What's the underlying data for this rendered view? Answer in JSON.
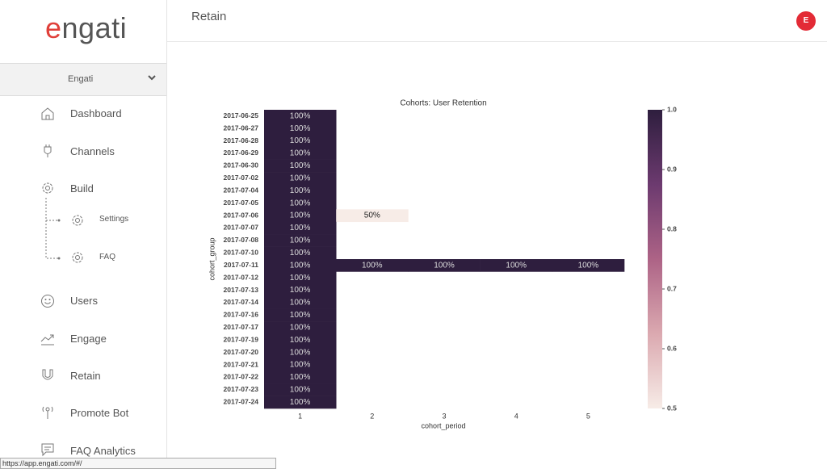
{
  "sidebar": {
    "logo": "engati",
    "workspace": "Engati",
    "nav": [
      "Dashboard",
      "Channels",
      "Build",
      "Settings",
      "FAQ",
      "Users",
      "Engage",
      "Retain",
      "Promote Bot",
      "FAQ Analytics"
    ]
  },
  "header": {
    "title": "Retain",
    "avatar": "E"
  },
  "status_bar": "https://app.engati.com/#/",
  "chart_data": {
    "type": "heatmap",
    "title": "Cohorts: User Retention",
    "x_label": "cohort_period",
    "y_label": "cohort_group",
    "categories": [
      "1",
      "2",
      "3",
      "4",
      "5"
    ],
    "rows": [
      "2017-06-25",
      "2017-06-27",
      "2017-06-28",
      "2017-06-29",
      "2017-06-30",
      "2017-07-02",
      "2017-07-04",
      "2017-07-05",
      "2017-07-06",
      "2017-07-07",
      "2017-07-08",
      "2017-07-10",
      "2017-07-11",
      "2017-07-12",
      "2017-07-13",
      "2017-07-14",
      "2017-07-16",
      "2017-07-17",
      "2017-07-19",
      "2017-07-20",
      "2017-07-21",
      "2017-07-22",
      "2017-07-23",
      "2017-07-24"
    ],
    "values": [
      [
        1,
        null,
        null,
        null,
        null
      ],
      [
        1,
        null,
        null,
        null,
        null
      ],
      [
        1,
        null,
        null,
        null,
        null
      ],
      [
        1,
        null,
        null,
        null,
        null
      ],
      [
        1,
        null,
        null,
        null,
        null
      ],
      [
        1,
        null,
        null,
        null,
        null
      ],
      [
        1,
        null,
        null,
        null,
        null
      ],
      [
        1,
        null,
        null,
        null,
        null
      ],
      [
        1,
        0.5,
        null,
        null,
        null
      ],
      [
        1,
        null,
        null,
        null,
        null
      ],
      [
        1,
        null,
        null,
        null,
        null
      ],
      [
        1,
        null,
        null,
        null,
        null
      ],
      [
        1,
        1,
        1,
        1,
        1
      ],
      [
        1,
        null,
        null,
        null,
        null
      ],
      [
        1,
        null,
        null,
        null,
        null
      ],
      [
        1,
        null,
        null,
        null,
        null
      ],
      [
        1,
        null,
        null,
        null,
        null
      ],
      [
        1,
        null,
        null,
        null,
        null
      ],
      [
        1,
        null,
        null,
        null,
        null
      ],
      [
        1,
        null,
        null,
        null,
        null
      ],
      [
        1,
        null,
        null,
        null,
        null
      ],
      [
        1,
        null,
        null,
        null,
        null
      ],
      [
        1,
        null,
        null,
        null,
        null
      ],
      [
        1,
        null,
        null,
        null,
        null
      ]
    ],
    "value_labels": [
      [
        "100%",
        null,
        null,
        null,
        null
      ],
      [
        "100%",
        null,
        null,
        null,
        null
      ],
      [
        "100%",
        null,
        null,
        null,
        null
      ],
      [
        "100%",
        null,
        null,
        null,
        null
      ],
      [
        "100%",
        null,
        null,
        null,
        null
      ],
      [
        "100%",
        null,
        null,
        null,
        null
      ],
      [
        "100%",
        null,
        null,
        null,
        null
      ],
      [
        "100%",
        null,
        null,
        null,
        null
      ],
      [
        "100%",
        "50%",
        null,
        null,
        null
      ],
      [
        "100%",
        null,
        null,
        null,
        null
      ],
      [
        "100%",
        null,
        null,
        null,
        null
      ],
      [
        "100%",
        null,
        null,
        null,
        null
      ],
      [
        "100%",
        "100%",
        "100%",
        "100%",
        "100%"
      ],
      [
        "100%",
        null,
        null,
        null,
        null
      ],
      [
        "100%",
        null,
        null,
        null,
        null
      ],
      [
        "100%",
        null,
        null,
        null,
        null
      ],
      [
        "100%",
        null,
        null,
        null,
        null
      ],
      [
        "100%",
        null,
        null,
        null,
        null
      ],
      [
        "100%",
        null,
        null,
        null,
        null
      ],
      [
        "100%",
        null,
        null,
        null,
        null
      ],
      [
        "100%",
        null,
        null,
        null,
        null
      ],
      [
        "100%",
        null,
        null,
        null,
        null
      ],
      [
        "100%",
        null,
        null,
        null,
        null
      ],
      [
        "100%",
        null,
        null,
        null,
        null
      ]
    ],
    "clim": [
      0.5,
      1
    ],
    "cticks": [
      0.5,
      0.6,
      0.7,
      0.8,
      0.9,
      {
        "value": 1,
        "label": "1.0"
      }
    ],
    "colors": [
      "#f7ece7",
      "#dba9b0",
      "#ad6386",
      "#6c3a6f",
      "#2e1e3e"
    ]
  }
}
